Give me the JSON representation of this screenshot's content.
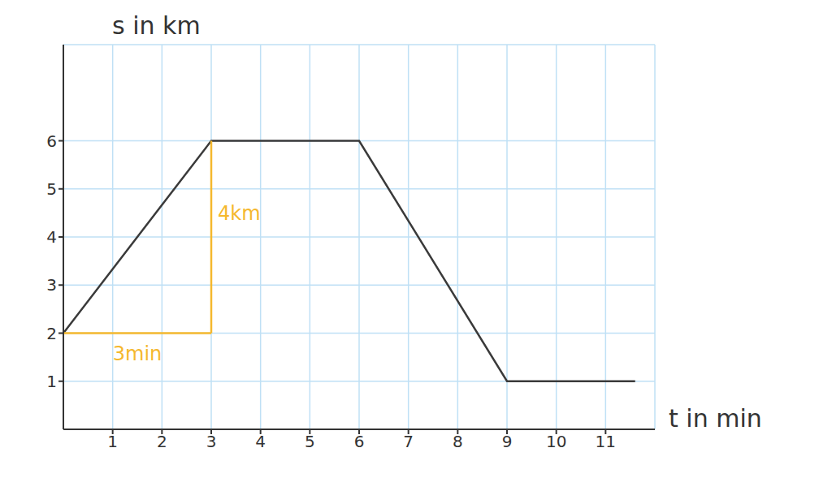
{
  "chart_data": {
    "type": "line",
    "x_label": "t in min",
    "y_label": "s in km",
    "x": [
      0,
      3,
      6,
      9,
      11.6
    ],
    "series": [
      {
        "name": "s",
        "color": "#3a3a3a",
        "values": [
          2,
          6,
          6,
          1,
          1
        ]
      }
    ],
    "xlim": [
      0,
      12
    ],
    "xticks": [
      1,
      2,
      3,
      4,
      5,
      6,
      7,
      8,
      9,
      10,
      11
    ],
    "ylim": [
      0,
      8
    ],
    "yticks": [
      1,
      2,
      3,
      4,
      5,
      6
    ],
    "grid": true,
    "annotations": [
      {
        "text": "3min",
        "x": [
          0,
          3
        ],
        "y": [
          2,
          2
        ],
        "color": "#f5b82e"
      },
      {
        "text": "4km",
        "x": [
          3,
          3
        ],
        "y": [
          2,
          6
        ],
        "color": "#f5b82e"
      }
    ]
  }
}
